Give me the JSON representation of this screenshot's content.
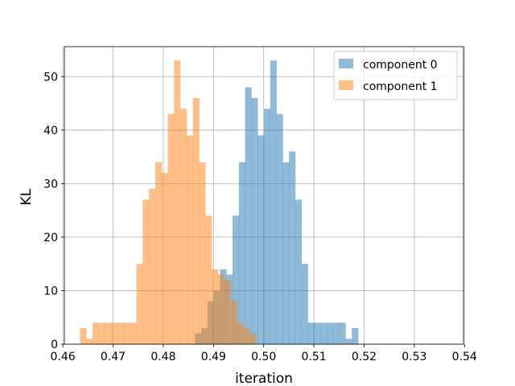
{
  "chart_data": {
    "type": "bar",
    "xlabel": "iteration",
    "ylabel": "KL",
    "xlim": [
      0.4603,
      0.5398
    ],
    "ylim": [
      0,
      55.6
    ],
    "grid": true,
    "legend_position": "top-right",
    "x_ticks": [
      "0.46",
      "0.47",
      "0.48",
      "0.49",
      "0.50",
      "0.51",
      "0.52",
      "0.53",
      "0.54"
    ],
    "y_ticks": [
      "0",
      "10",
      "20",
      "30",
      "40",
      "50"
    ],
    "bin_width": 0.00125,
    "series": [
      {
        "name": "component 0",
        "color": "#1f77b4",
        "opacity": 0.5,
        "bin_start": 0.4863,
        "counts": [
          2,
          3,
          8,
          10,
          14,
          13,
          24,
          34,
          48,
          46,
          39,
          44,
          53,
          43,
          34,
          36,
          27,
          15,
          4,
          4,
          4,
          4,
          4,
          4,
          1,
          3
        ]
      },
      {
        "name": "component 1",
        "color": "#ff7f0e",
        "opacity": 0.5,
        "bin_start": 0.4634,
        "counts": [
          3,
          1,
          4,
          4,
          4,
          4,
          4,
          4,
          4,
          15,
          27,
          29,
          34,
          32,
          43,
          53,
          44,
          39,
          46,
          34,
          24,
          14,
          13,
          12,
          8,
          4,
          3,
          2
        ]
      }
    ]
  }
}
